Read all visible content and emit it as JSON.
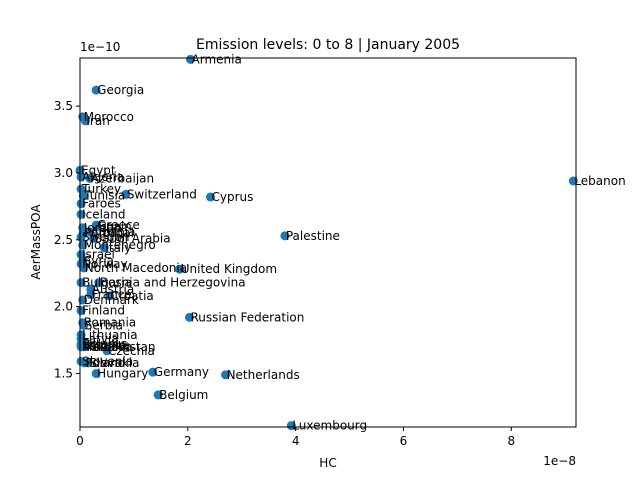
{
  "chart_data": {
    "type": "scatter",
    "title": "Emission levels: 0 to 8 | January 2005",
    "xlabel": "HC",
    "ylabel": "AerMassPOA",
    "x_exponent_label": "1e−8",
    "y_exponent_label": "1e−10",
    "xlim": [
      0,
      9.2
    ],
    "ylim": [
      1.1,
      3.86
    ],
    "x_ticks": [
      0,
      2,
      4,
      6,
      8
    ],
    "x_tick_labels": [
      "0",
      "2",
      "4",
      "6",
      "8"
    ],
    "y_ticks": [
      1.5,
      2.0,
      2.5,
      3.0,
      3.5
    ],
    "y_tick_labels": [
      "1.5",
      "2.0",
      "2.5",
      "3.0",
      "3.5"
    ],
    "grid": false,
    "marker_color": "#1f77b4",
    "points": [
      {
        "label": "Armenia",
        "x": 2.05,
        "y": 3.85
      },
      {
        "label": "Georgia",
        "x": 0.3,
        "y": 3.62
      },
      {
        "label": "Morocco",
        "x": 0.05,
        "y": 3.42
      },
      {
        "label": "Iran",
        "x": 0.1,
        "y": 3.39
      },
      {
        "label": "Egypt",
        "x": 0.0,
        "y": 3.02
      },
      {
        "label": "Algeria",
        "x": 0.02,
        "y": 2.97
      },
      {
        "label": "Azerbaijan",
        "x": 0.18,
        "y": 2.96
      },
      {
        "label": "Turkey",
        "x": 0.02,
        "y": 2.88
      },
      {
        "label": "Tunisia",
        "x": 0.06,
        "y": 2.83
      },
      {
        "label": "Switzerland",
        "x": 0.85,
        "y": 2.84
      },
      {
        "label": "Cyprus",
        "x": 2.42,
        "y": 2.82
      },
      {
        "label": "Faroes",
        "x": 0.02,
        "y": 2.77
      },
      {
        "label": "Iceland",
        "x": 0.02,
        "y": 2.69
      },
      {
        "label": "Greece",
        "x": 0.3,
        "y": 2.61
      },
      {
        "label": "Spain",
        "x": 0.32,
        "y": 2.6
      },
      {
        "label": "Jordan",
        "x": 0.05,
        "y": 2.59
      },
      {
        "label": "Portugal",
        "x": 0.06,
        "y": 2.55
      },
      {
        "label": "Albania",
        "x": 0.18,
        "y": 2.56
      },
      {
        "label": "Sweden",
        "x": 0.02,
        "y": 2.52
      },
      {
        "label": "Saudi Arabia",
        "x": 0.25,
        "y": 2.51
      },
      {
        "label": "Palestine",
        "x": 3.8,
        "y": 2.53
      },
      {
        "label": "Montenegro",
        "x": 0.05,
        "y": 2.46
      },
      {
        "label": "Italy",
        "x": 0.45,
        "y": 2.44
      },
      {
        "label": "Israel",
        "x": 0.02,
        "y": 2.39
      },
      {
        "label": "Syria",
        "x": 0.05,
        "y": 2.34
      },
      {
        "label": "Norway",
        "x": 0.02,
        "y": 2.32
      },
      {
        "label": "North Macedonia",
        "x": 0.07,
        "y": 2.29
      },
      {
        "label": "United Kingdom",
        "x": 1.85,
        "y": 2.28
      },
      {
        "label": "Lebanon",
        "x": 9.15,
        "y": 2.94
      },
      {
        "label": "Bulgaria",
        "x": 0.02,
        "y": 2.18
      },
      {
        "label": "Bosnia and Herzegovina",
        "x": 0.35,
        "y": 2.18
      },
      {
        "label": "Austria",
        "x": 0.2,
        "y": 2.13
      },
      {
        "label": "France",
        "x": 0.2,
        "y": 2.09
      },
      {
        "label": "Croatia",
        "x": 0.55,
        "y": 2.08
      },
      {
        "label": "Denmark",
        "x": 0.05,
        "y": 2.05
      },
      {
        "label": "Finland",
        "x": 0.02,
        "y": 1.97
      },
      {
        "label": "Russian Federation",
        "x": 2.03,
        "y": 1.92
      },
      {
        "label": "Serbia",
        "x": 0.07,
        "y": 1.86
      },
      {
        "label": "Romania",
        "x": 0.05,
        "y": 1.88
      },
      {
        "label": "Lithuania",
        "x": 0.02,
        "y": 1.79
      },
      {
        "label": "Latvia",
        "x": 0.02,
        "y": 1.76
      },
      {
        "label": "Belarus",
        "x": 0.02,
        "y": 1.72
      },
      {
        "label": "Ukraine",
        "x": 0.05,
        "y": 1.71
      },
      {
        "label": "Estonia",
        "x": 0.02,
        "y": 1.71
      },
      {
        "label": "Moldova",
        "x": 0.02,
        "y": 1.7
      },
      {
        "label": "Kazakhstan",
        "x": 0.1,
        "y": 1.7
      },
      {
        "label": "Czechia",
        "x": 0.5,
        "y": 1.67
      },
      {
        "label": "Slovenia",
        "x": 0.02,
        "y": 1.59
      },
      {
        "label": "Poland",
        "x": 0.08,
        "y": 1.58
      },
      {
        "label": "Slovakia",
        "x": 0.15,
        "y": 1.58
      },
      {
        "label": "Hungary",
        "x": 0.3,
        "y": 1.5
      },
      {
        "label": "Germany",
        "x": 1.35,
        "y": 1.51
      },
      {
        "label": "Netherlands",
        "x": 2.7,
        "y": 1.49
      },
      {
        "label": "Belgium",
        "x": 1.45,
        "y": 1.34
      },
      {
        "label": "Luxembourg",
        "x": 3.92,
        "y": 1.11
      }
    ]
  }
}
